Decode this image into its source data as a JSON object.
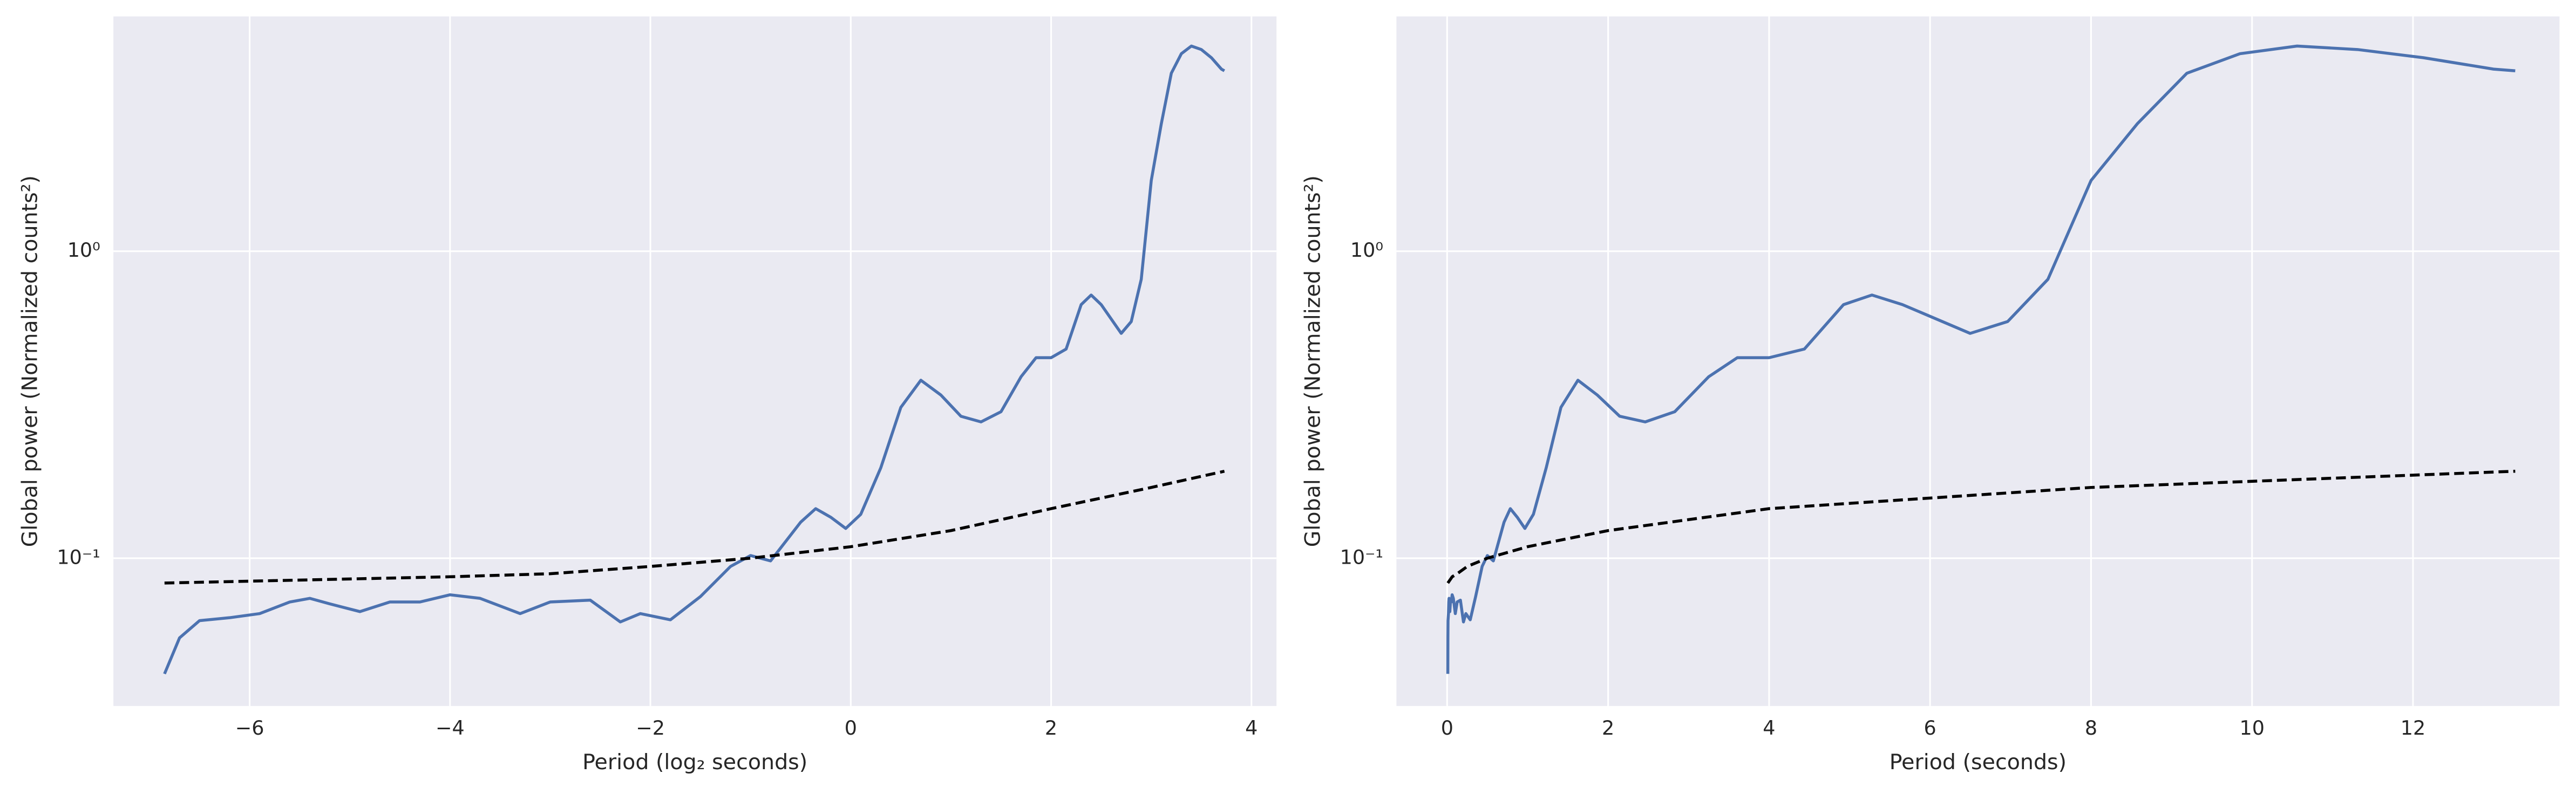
{
  "chart_data": [
    {
      "type": "line",
      "xlabel": "Period (log₂ seconds)",
      "ylabel": "Global power (Normalized counts²)",
      "xlim": [
        -7.36,
        4.25
      ],
      "ylim": [
        0.033,
        5.82
      ],
      "yscale": "log",
      "grid": true,
      "xticks": [
        {
          "value": -6,
          "label": "−6"
        },
        {
          "value": -4,
          "label": "−4"
        },
        {
          "value": -2,
          "label": "−2"
        },
        0,
        2,
        4
      ],
      "yticks": [
        {
          "value": 0.1,
          "label": "10⁻¹"
        },
        {
          "value": 1,
          "label": "10⁰"
        }
      ],
      "series": [
        {
          "color": "#4c72b0",
          "linestyle": "solid",
          "x": [
            -6.85,
            -6.7,
            -6.5,
            -6.2,
            -5.9,
            -5.6,
            -5.4,
            -5.2,
            -4.9,
            -4.6,
            -4.3,
            -4.0,
            -3.7,
            -3.3,
            -3.0,
            -2.6,
            -2.3,
            -2.1,
            -1.8,
            -1.5,
            -1.2,
            -1.0,
            -0.8,
            -0.5,
            -0.35,
            -0.2,
            -0.05,
            0.1,
            0.3,
            0.5,
            0.7,
            0.9,
            1.1,
            1.3,
            1.5,
            1.7,
            1.85,
            2.0,
            2.15,
            2.3,
            2.4,
            2.5,
            2.7,
            2.8,
            2.9,
            3.0,
            3.1,
            3.2,
            3.3,
            3.4,
            3.5,
            3.6,
            3.7,
            3.73
          ],
          "values": [
            0.042,
            0.055,
            0.0626,
            0.064,
            0.066,
            0.072,
            0.074,
            0.071,
            0.067,
            0.072,
            0.072,
            0.076,
            0.074,
            0.066,
            0.072,
            0.073,
            0.062,
            0.066,
            0.063,
            0.075,
            0.094,
            0.102,
            0.098,
            0.131,
            0.145,
            0.136,
            0.125,
            0.139,
            0.197,
            0.31,
            0.38,
            0.34,
            0.29,
            0.278,
            0.3,
            0.39,
            0.45,
            0.45,
            0.48,
            0.67,
            0.72,
            0.67,
            0.54,
            0.59,
            0.81,
            1.7,
            2.6,
            3.8,
            4.4,
            4.66,
            4.54,
            4.27,
            3.92,
            3.87
          ]
        },
        {
          "color": "#000000",
          "linestyle": "dashed",
          "x": [
            -6.85,
            -4,
            -3,
            -2,
            -1,
            0,
            1,
            2,
            3,
            3.73
          ],
          "values": [
            0.083,
            0.087,
            0.089,
            0.094,
            0.1,
            0.109,
            0.123,
            0.145,
            0.17,
            0.192
          ]
        }
      ]
    },
    {
      "type": "line",
      "xlabel": "Period (seconds)",
      "ylabel": "Global power (Normalized counts²)",
      "xlim": [
        -0.63,
        13.82
      ],
      "ylim": [
        0.033,
        5.82
      ],
      "yscale": "log",
      "grid": true,
      "xticks": [
        0,
        2,
        4,
        6,
        8,
        10,
        12
      ],
      "yticks": [
        {
          "value": 0.1,
          "label": "10⁻¹"
        },
        {
          "value": 1,
          "label": "10⁰"
        }
      ],
      "series": [
        {
          "color": "#4c72b0",
          "linestyle": "solid",
          "x": [
            0.0087,
            0.0096,
            0.011,
            0.0136,
            0.0167,
            0.0206,
            0.0237,
            0.0272,
            0.0335,
            0.0412,
            0.0508,
            0.0625,
            0.077,
            0.1015,
            0.125,
            0.165,
            0.203,
            0.233,
            0.287,
            0.354,
            0.435,
            0.5,
            0.574,
            0.707,
            0.785,
            0.871,
            0.966,
            1.072,
            1.231,
            1.414,
            1.625,
            1.866,
            2.144,
            2.462,
            2.828,
            3.249,
            3.605,
            4.0,
            4.438,
            4.925,
            5.278,
            5.657,
            6.498,
            6.964,
            7.464,
            8.0,
            8.574,
            9.19,
            9.85,
            10.56,
            11.31,
            12.13,
            13.0,
            13.27
          ],
          "values": [
            0.042,
            0.055,
            0.0626,
            0.064,
            0.066,
            0.072,
            0.074,
            0.071,
            0.067,
            0.072,
            0.072,
            0.076,
            0.074,
            0.066,
            0.072,
            0.073,
            0.062,
            0.066,
            0.063,
            0.075,
            0.094,
            0.102,
            0.098,
            0.131,
            0.145,
            0.136,
            0.125,
            0.139,
            0.197,
            0.31,
            0.38,
            0.34,
            0.29,
            0.278,
            0.3,
            0.39,
            0.45,
            0.45,
            0.48,
            0.67,
            0.72,
            0.67,
            0.54,
            0.59,
            0.81,
            1.7,
            2.6,
            3.8,
            4.4,
            4.66,
            4.54,
            4.27,
            3.92,
            3.87
          ]
        },
        {
          "color": "#000000",
          "linestyle": "dashed",
          "x": [
            0.0087,
            0.0625,
            0.125,
            0.25,
            0.5,
            1,
            2,
            4,
            8,
            13.27
          ],
          "values": [
            0.083,
            0.087,
            0.089,
            0.094,
            0.1,
            0.109,
            0.123,
            0.145,
            0.17,
            0.192
          ]
        }
      ]
    }
  ]
}
